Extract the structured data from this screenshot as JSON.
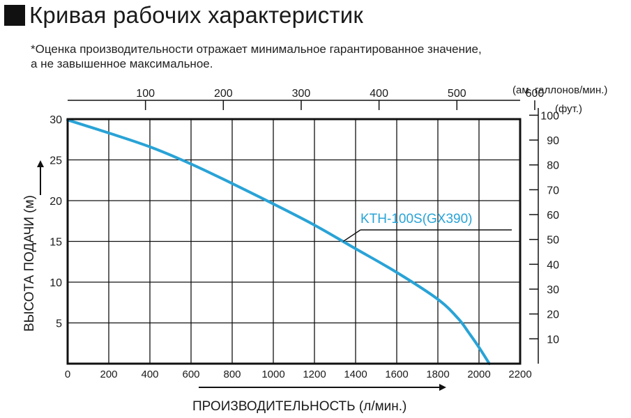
{
  "header": {
    "title": "Кривая рабочих характеристик",
    "note_line1": "*Оценка производительности отражает минимальное гарантированное значение,",
    "note_line2": "а не завышенное максимальное."
  },
  "chart_data": {
    "type": "line",
    "xlabel": "ПРОИЗВОДИТЕЛЬНОСТЬ (л/мин.)",
    "ylabel": "ВЫСОТА ПОДАЧИ (м)",
    "xlim": [
      0,
      2200
    ],
    "ylim": [
      0,
      30
    ],
    "x_ticks": [
      0,
      200,
      400,
      600,
      800,
      1000,
      1200,
      1400,
      1600,
      1800,
      2000,
      2200
    ],
    "y_ticks": [
      5,
      10,
      15,
      20,
      25,
      30
    ],
    "top_axis": {
      "unit": "(ам. галлонов/мин.)",
      "ticks": [
        100,
        200,
        300,
        400,
        500,
        600
      ],
      "liters_per_unit": 3.785
    },
    "right_axis": {
      "unit": "(фут.)",
      "ticks": [
        10,
        20,
        30,
        40,
        50,
        60,
        70,
        80,
        90,
        100
      ],
      "meters_per_unit": 0.3048
    },
    "grid": true,
    "series": [
      {
        "name": "KTH-100S(GX390)",
        "color": "#29a3d6",
        "x": [
          0,
          200,
          400,
          600,
          800,
          1000,
          1200,
          1400,
          1600,
          1800,
          1900,
          1950,
          2000,
          2050
        ],
        "y": [
          29.9,
          28.3,
          26.6,
          24.5,
          22.1,
          19.6,
          17.0,
          14.1,
          11.2,
          7.9,
          5.5,
          3.8,
          2.0,
          0
        ]
      }
    ]
  }
}
